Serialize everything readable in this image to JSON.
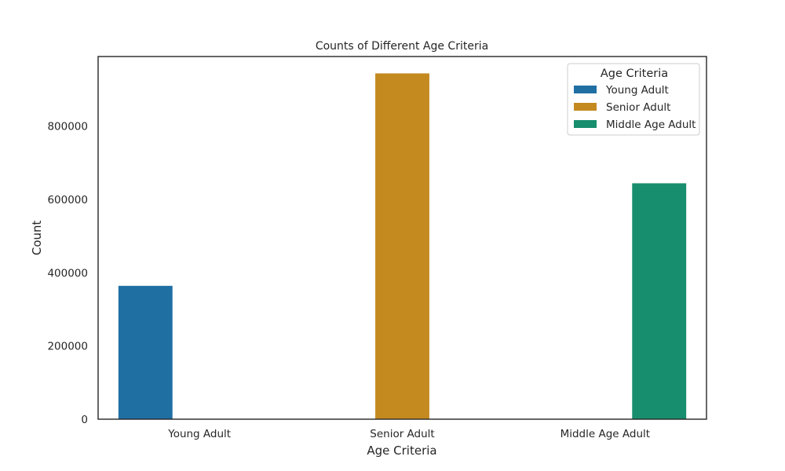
{
  "chart_data": {
    "type": "bar",
    "title": "Counts of Different Age Criteria",
    "xlabel": "Age Criteria",
    "ylabel": "Count",
    "categories": [
      "Young Adult",
      "Senior Adult",
      "Middle Age Adult"
    ],
    "ylim": [
      0,
      990000
    ],
    "yticks": [
      0,
      200000,
      400000,
      600000,
      800000
    ],
    "ytick_labels": [
      "0",
      "200000",
      "400000",
      "600000",
      "800000"
    ],
    "grid": false,
    "legend_placement": "top-right",
    "legend_title": "Age Criteria",
    "series": [
      {
        "name": "Young Adult",
        "color": "#1f6fa3",
        "values": [
          364000,
          null,
          null
        ]
      },
      {
        "name": "Senior Adult",
        "color": "#c48a20",
        "values": [
          null,
          944000,
          null
        ]
      },
      {
        "name": "Middle Age Adult",
        "color": "#178e6d",
        "values": [
          null,
          null,
          644000
        ]
      }
    ]
  }
}
